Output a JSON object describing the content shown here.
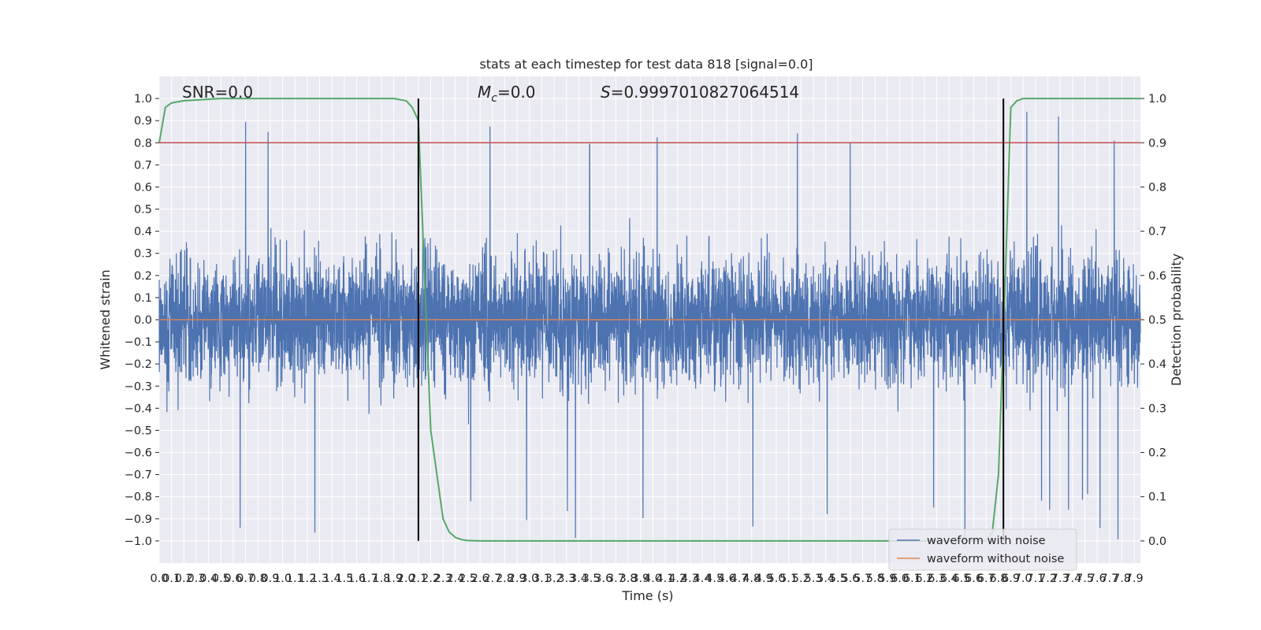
{
  "chart_data": {
    "type": "line",
    "title": "stats at each timestep for test data 818 [signal=0.0]",
    "xlabel": "Time (s)",
    "ylabel": "Whitened strain",
    "y2label": "Detection probability",
    "xlim": [
      0.0,
      7.95
    ],
    "ylim": [
      -1.1,
      1.1
    ],
    "y2lim": [
      -0.05,
      1.05
    ],
    "x_ticks_step": 0.1,
    "y_ticks": [
      -1.0,
      -0.9,
      -0.8,
      -0.7,
      -0.6,
      -0.5,
      -0.4,
      -0.3,
      -0.2,
      -0.1,
      0.0,
      0.1,
      0.2,
      0.3,
      0.4,
      0.5,
      0.6,
      0.7,
      0.8,
      0.9,
      1.0
    ],
    "y2_ticks": [
      0.0,
      0.1,
      0.2,
      0.3,
      0.4,
      0.5,
      0.6,
      0.7,
      0.8,
      0.9,
      1.0
    ],
    "grid": true,
    "legend_position": "lower right",
    "annotations": {
      "snr": "SNR=0.0",
      "mc_symbol": "M",
      "mc_sub": "c",
      "mc_value": "=0.0",
      "s_symbol": "S",
      "s_value": "=0.9997010827064514"
    },
    "threshold_line": {
      "y2": 0.9,
      "color": "#c44e52"
    },
    "vertical_lines_x": [
      2.1,
      6.84
    ],
    "series": [
      {
        "name": "waveform with noise",
        "color": "#4c72b0",
        "axis": "left",
        "description_stats": {
          "approx_amplitude_range": [
            -1.0,
            1.0
          ]
        }
      },
      {
        "name": "waveform without noise",
        "color": "#dd8452",
        "axis": "left",
        "constant": 0.0
      },
      {
        "name": "",
        "color": "#55a868",
        "axis": "right",
        "x": [
          0.0,
          0.05,
          0.1,
          0.2,
          0.5,
          1.0,
          1.5,
          1.9,
          2.0,
          2.05,
          2.1,
          2.15,
          2.2,
          2.3,
          2.35,
          2.4,
          2.45,
          2.5,
          2.6,
          3.0,
          4.0,
          5.0,
          6.0,
          6.7,
          6.75,
          6.8,
          6.85,
          6.9,
          6.95,
          7.0,
          7.5,
          7.95
        ],
        "y": [
          0.9,
          0.98,
          0.99,
          0.995,
          1.0,
          1.0,
          1.0,
          1.0,
          0.995,
          0.98,
          0.95,
          0.6,
          0.25,
          0.05,
          0.02,
          0.008,
          0.003,
          0.001,
          0.0,
          0.0,
          0.0,
          0.0,
          0.0,
          0.0,
          0.02,
          0.15,
          0.55,
          0.98,
          0.995,
          1.0,
          1.0,
          1.0
        ]
      }
    ]
  }
}
